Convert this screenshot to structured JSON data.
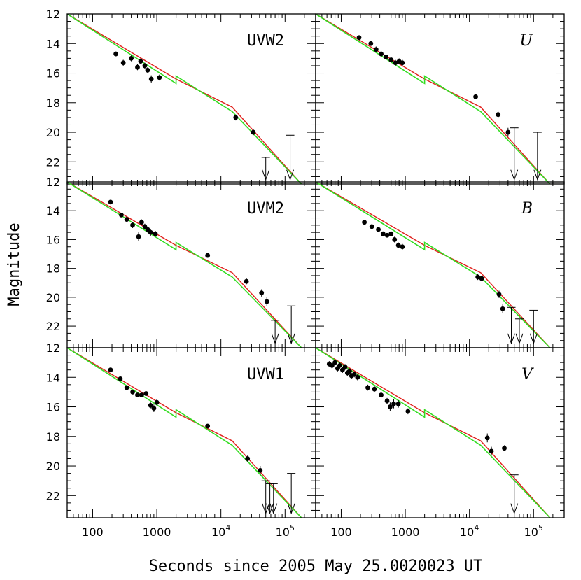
{
  "chart_data": {
    "type": "scatter",
    "xscale": "log",
    "xlim": [
      40,
      300000
    ],
    "ylim": [
      23.5,
      12
    ],
    "ylabel": "Magnitude",
    "xlabel": "Seconds since 2005 May 25.0020023 UT",
    "x_ticklabels": [
      {
        "v": 100,
        "text": "100",
        "sup": ""
      },
      {
        "v": 1000,
        "text": "1000",
        "sup": ""
      },
      {
        "v": 10000,
        "text": "10",
        "sup": "4"
      },
      {
        "v": 100000,
        "text": "10",
        "sup": "5"
      }
    ],
    "y_ticklabels": [
      "12",
      "14",
      "16",
      "18",
      "20",
      "22"
    ],
    "model_red": [
      [
        40,
        12.0
      ],
      [
        2000,
        16.4
      ],
      [
        15000,
        18.3
      ],
      [
        180000,
        23.5
      ]
    ],
    "model_green": [
      [
        40,
        12.0
      ],
      [
        2000,
        16.7
      ],
      [
        2000,
        16.2
      ],
      [
        15000,
        18.6
      ],
      [
        180000,
        23.5
      ]
    ],
    "panels": [
      {
        "label": "UVW2",
        "italic": false,
        "points": [
          {
            "t": 230,
            "m": 14.7,
            "e": 0.15
          },
          {
            "t": 300,
            "m": 15.3,
            "e": 0.2
          },
          {
            "t": 400,
            "m": 15.0,
            "e": 0.2
          },
          {
            "t": 500,
            "m": 15.6,
            "e": 0.2
          },
          {
            "t": 560,
            "m": 15.2,
            "e": 0.2
          },
          {
            "t": 650,
            "m": 15.5,
            "e": 0.2
          },
          {
            "t": 720,
            "m": 15.8,
            "e": 0.2
          },
          {
            "t": 820,
            "m": 16.4,
            "e": 0.25
          },
          {
            "t": 1100,
            "m": 16.3,
            "e": 0.2
          },
          {
            "t": 17000,
            "m": 19.0,
            "e": 0.2
          },
          {
            "t": 32000,
            "m": 20.0,
            "e": 0.2
          }
        ],
        "upper_limits": [
          {
            "t": 50000,
            "from": 21.7,
            "to": 23.2
          },
          {
            "t": 120000,
            "from": 20.2,
            "to": 23.2
          }
        ]
      },
      {
        "label": "U",
        "italic": true,
        "points": [
          {
            "t": 190,
            "m": 13.6,
            "e": 0.15
          },
          {
            "t": 290,
            "m": 14.0,
            "e": 0.15
          },
          {
            "t": 350,
            "m": 14.4,
            "e": 0.2
          },
          {
            "t": 420,
            "m": 14.7,
            "e": 0.2
          },
          {
            "t": 500,
            "m": 14.9,
            "e": 0.2
          },
          {
            "t": 600,
            "m": 15.1,
            "e": 0.2
          },
          {
            "t": 700,
            "m": 15.3,
            "e": 0.2
          },
          {
            "t": 800,
            "m": 15.2,
            "e": 0.2
          },
          {
            "t": 900,
            "m": 15.3,
            "e": 0.2
          },
          {
            "t": 12500,
            "m": 17.6,
            "e": 0.15
          },
          {
            "t": 28000,
            "m": 18.8,
            "e": 0.2
          },
          {
            "t": 40000,
            "m": 20.0,
            "e": 0.3
          }
        ],
        "upper_limits": [
          {
            "t": 50000,
            "from": 19.7,
            "to": 23.2
          },
          {
            "t": 115000,
            "from": 20.0,
            "to": 23.2
          }
        ]
      },
      {
        "label": "UVM2",
        "italic": false,
        "points": [
          {
            "t": 190,
            "m": 13.4,
            "e": 0.15
          },
          {
            "t": 280,
            "m": 14.3,
            "e": 0.15
          },
          {
            "t": 340,
            "m": 14.6,
            "e": 0.2
          },
          {
            "t": 420,
            "m": 15.0,
            "e": 0.2
          },
          {
            "t": 520,
            "m": 15.8,
            "e": 0.3
          },
          {
            "t": 580,
            "m": 14.8,
            "e": 0.2
          },
          {
            "t": 650,
            "m": 15.1,
            "e": 0.2
          },
          {
            "t": 720,
            "m": 15.3,
            "e": 0.2
          },
          {
            "t": 800,
            "m": 15.5,
            "e": 0.25
          },
          {
            "t": 950,
            "m": 15.6,
            "e": 0.2
          },
          {
            "t": 6200,
            "m": 17.1,
            "e": 0.15
          },
          {
            "t": 25000,
            "m": 18.9,
            "e": 0.2
          },
          {
            "t": 43000,
            "m": 19.7,
            "e": 0.25
          },
          {
            "t": 52000,
            "m": 20.3,
            "e": 0.3
          }
        ],
        "upper_limits": [
          {
            "t": 70000,
            "from": 21.6,
            "to": 23.2
          },
          {
            "t": 125000,
            "from": 20.6,
            "to": 23.2
          }
        ]
      },
      {
        "label": "B",
        "italic": true,
        "points": [
          {
            "t": 230,
            "m": 14.8,
            "e": 0.15
          },
          {
            "t": 300,
            "m": 15.1,
            "e": 0.15
          },
          {
            "t": 380,
            "m": 15.3,
            "e": 0.15
          },
          {
            "t": 450,
            "m": 15.6,
            "e": 0.15
          },
          {
            "t": 520,
            "m": 15.7,
            "e": 0.15
          },
          {
            "t": 600,
            "m": 15.6,
            "e": 0.15
          },
          {
            "t": 680,
            "m": 16.0,
            "e": 0.2
          },
          {
            "t": 780,
            "m": 16.4,
            "e": 0.2
          },
          {
            "t": 900,
            "m": 16.5,
            "e": 0.2
          },
          {
            "t": 13500,
            "m": 18.6,
            "e": 0.2
          },
          {
            "t": 15500,
            "m": 18.7,
            "e": 0.15
          },
          {
            "t": 29000,
            "m": 19.8,
            "e": 0.25
          },
          {
            "t": 33000,
            "m": 20.8,
            "e": 0.3
          }
        ],
        "upper_limits": [
          {
            "t": 45000,
            "from": 20.7,
            "to": 23.2
          },
          {
            "t": 60000,
            "from": 21.5,
            "to": 23.2
          },
          {
            "t": 100000,
            "from": 20.9,
            "to": 23.2
          }
        ]
      },
      {
        "label": "UVW1",
        "italic": false,
        "points": [
          {
            "t": 190,
            "m": 13.5,
            "e": 0.15
          },
          {
            "t": 270,
            "m": 14.1,
            "e": 0.15
          },
          {
            "t": 340,
            "m": 14.7,
            "e": 0.15
          },
          {
            "t": 420,
            "m": 15.0,
            "e": 0.15
          },
          {
            "t": 500,
            "m": 15.2,
            "e": 0.15
          },
          {
            "t": 580,
            "m": 15.2,
            "e": 0.15
          },
          {
            "t": 680,
            "m": 15.1,
            "e": 0.15
          },
          {
            "t": 800,
            "m": 15.9,
            "e": 0.2
          },
          {
            "t": 900,
            "m": 16.1,
            "e": 0.25
          },
          {
            "t": 1000,
            "m": 15.7,
            "e": 0.2
          },
          {
            "t": 6200,
            "m": 17.3,
            "e": 0.15
          },
          {
            "t": 26000,
            "m": 19.5,
            "e": 0.2
          },
          {
            "t": 41000,
            "m": 20.3,
            "e": 0.3
          }
        ],
        "upper_limits": [
          {
            "t": 50000,
            "from": 21.0,
            "to": 23.2
          },
          {
            "t": 58000,
            "from": 21.2,
            "to": 23.2
          },
          {
            "t": 66000,
            "from": 21.2,
            "to": 23.2
          },
          {
            "t": 125000,
            "from": 20.5,
            "to": 23.2
          }
        ]
      },
      {
        "label": "V",
        "italic": true,
        "points": [
          {
            "t": 65,
            "m": 13.1,
            "e": 0.2
          },
          {
            "t": 72,
            "m": 13.2,
            "e": 0.2
          },
          {
            "t": 80,
            "m": 13.0,
            "e": 0.2
          },
          {
            "t": 88,
            "m": 13.4,
            "e": 0.2
          },
          {
            "t": 95,
            "m": 13.2,
            "e": 0.2
          },
          {
            "t": 105,
            "m": 13.5,
            "e": 0.2
          },
          {
            "t": 115,
            "m": 13.3,
            "e": 0.2
          },
          {
            "t": 125,
            "m": 13.7,
            "e": 0.2
          },
          {
            "t": 135,
            "m": 13.6,
            "e": 0.2
          },
          {
            "t": 145,
            "m": 13.9,
            "e": 0.2
          },
          {
            "t": 160,
            "m": 13.8,
            "e": 0.2
          },
          {
            "t": 180,
            "m": 14.0,
            "e": 0.2
          },
          {
            "t": 260,
            "m": 14.7,
            "e": 0.2
          },
          {
            "t": 330,
            "m": 14.8,
            "e": 0.2
          },
          {
            "t": 420,
            "m": 15.2,
            "e": 0.2
          },
          {
            "t": 520,
            "m": 15.6,
            "e": 0.2
          },
          {
            "t": 580,
            "m": 16.0,
            "e": 0.3
          },
          {
            "t": 660,
            "m": 15.8,
            "e": 0.3
          },
          {
            "t": 780,
            "m": 15.8,
            "e": 0.25
          },
          {
            "t": 1100,
            "m": 16.3,
            "e": 0.2
          },
          {
            "t": 19000,
            "m": 18.1,
            "e": 0.3
          },
          {
            "t": 22000,
            "m": 19.0,
            "e": 0.3
          },
          {
            "t": 35000,
            "m": 18.8,
            "e": 0.2
          }
        ],
        "upper_limits": [
          {
            "t": 50000,
            "from": 20.6,
            "to": 23.2
          }
        ]
      }
    ]
  }
}
